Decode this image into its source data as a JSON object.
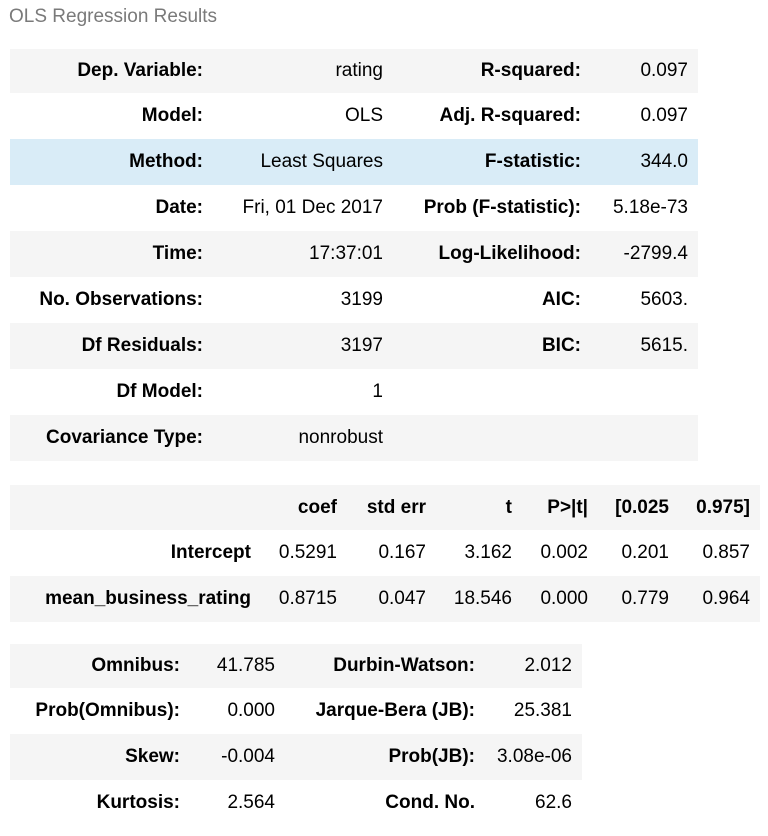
{
  "caption": "OLS Regression Results",
  "summary": [
    {
      "l1": "Dep. Variable:",
      "v1": "rating",
      "l2": "R-squared:",
      "v2": "0.097"
    },
    {
      "l1": "Model:",
      "v1": "OLS",
      "l2": "Adj. R-squared:",
      "v2": "0.097"
    },
    {
      "l1": "Method:",
      "v1": "Least Squares",
      "l2": "F-statistic:",
      "v2": "344.0"
    },
    {
      "l1": "Date:",
      "v1": "Fri, 01 Dec 2017",
      "l2": "Prob (F-statistic):",
      "v2": "5.18e-73"
    },
    {
      "l1": "Time:",
      "v1": "17:37:01",
      "l2": "Log-Likelihood:",
      "v2": "-2799.4"
    },
    {
      "l1": "No. Observations:",
      "v1": "3199",
      "l2": "AIC:",
      "v2": "5603."
    },
    {
      "l1": "Df Residuals:",
      "v1": "3197",
      "l2": "BIC:",
      "v2": "5615."
    },
    {
      "l1": "Df Model:",
      "v1": "1",
      "l2": "",
      "v2": ""
    },
    {
      "l1": "Covariance Type:",
      "v1": "nonrobust",
      "l2": "",
      "v2": ""
    }
  ],
  "coef_table": {
    "headers": [
      "",
      "coef",
      "std err",
      "t",
      "P>|t|",
      "[0.025",
      "0.975]"
    ],
    "rows": [
      [
        "Intercept",
        "0.5291",
        "0.167",
        "3.162",
        "0.002",
        "0.201",
        "0.857"
      ],
      [
        "mean_business_rating",
        "0.8715",
        "0.047",
        "18.546",
        "0.000",
        "0.779",
        "0.964"
      ]
    ]
  },
  "diagnostics": [
    {
      "l1": "Omnibus:",
      "v1": "41.785",
      "l2": "Durbin-Watson:",
      "v2": "2.012"
    },
    {
      "l1": "Prob(Omnibus):",
      "v1": "0.000",
      "l2": "Jarque-Bera (JB):",
      "v2": "25.381"
    },
    {
      "l1": "Skew:",
      "v1": "-0.004",
      "l2": "Prob(JB):",
      "v2": "3.08e-06"
    },
    {
      "l1": "Kurtosis:",
      "v1": "2.564",
      "l2": "Cond. No.",
      "v2": "62.6"
    }
  ],
  "colors": {
    "row_alt": "#f5f5f5",
    "row_highlight": "#d9ecf7",
    "caption": "#7a7a7a"
  }
}
